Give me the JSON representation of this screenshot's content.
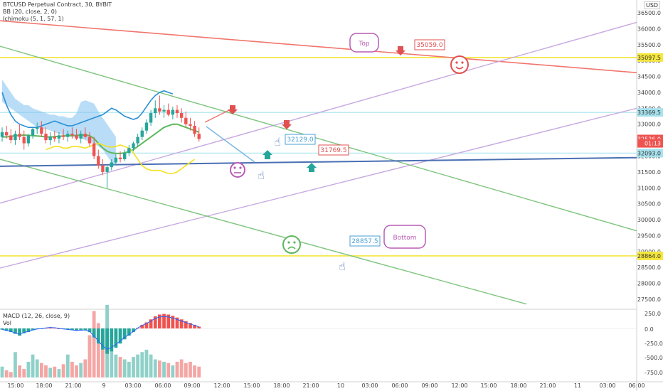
{
  "header": {
    "symbol": "BTCUSD Perpetual Contract, 30, BYBIT",
    "bb": "BB (20, close, 2, 0)",
    "ichimoku": "Ichimoku (5, 1, 57, 1)",
    "macd": "MACD (12, 26, close, 9)",
    "vol": "Vol"
  },
  "axis": {
    "currency": "USD",
    "price_ticks": [
      "36500.0",
      "36000.0",
      "35500.0",
      "35000.0",
      "34500.0",
      "34000.0",
      "33500.0",
      "33000.0",
      "32500.0",
      "32000.0",
      "31500.0",
      "31000.0",
      "30500.0",
      "30000.0",
      "29500.0",
      "29000.0",
      "28500.0",
      "28000.0",
      "27500.0"
    ],
    "macd_ticks": [
      "250.0",
      "0.0",
      "-250.0",
      "-500.0",
      "-750.0"
    ],
    "time_ticks": [
      "15:00",
      "18:00",
      "21:00",
      "9",
      "03:00",
      "06:00",
      "09:00",
      "12:00",
      "15:00",
      "18:00",
      "21:00",
      "10",
      "03:00",
      "06:00",
      "09:00",
      "12:00",
      "15:00",
      "18:00",
      "21:00",
      "11",
      "03:00",
      "06:00"
    ]
  },
  "price_tags": [
    {
      "text": "35097.5",
      "kind": "yellow"
    },
    {
      "text": "33369.5",
      "kind": "cyan"
    },
    {
      "text": "32536.0",
      "kind": "red"
    },
    {
      "text": "01:13",
      "kind": "red"
    },
    {
      "text": "32093.0",
      "kind": "cyan"
    },
    {
      "text": "28864.0",
      "kind": "yellow"
    }
  ],
  "annotations": {
    "top": "Top",
    "bottom": "Bottom",
    "label_35059": "35059.0",
    "label_32129": "32129.0",
    "label_31769": "31769.5",
    "label_28857": "28857.5"
  },
  "colors": {
    "up": "#26a69a",
    "down": "#ef5350",
    "yellow_line": "#f5e63b",
    "cyan_line": "#a7e3ef",
    "green_channel": "#7dc47d",
    "purple_channel": "#c8a8e0",
    "red_trend": "#f0766d",
    "blue_trend": "#4a6fb3",
    "cloud": "#7fc1f0"
  },
  "chart_data": {
    "type": "candlestick",
    "title": "BTCUSD Perpetual Contract, 30, BYBIT",
    "ylim": [
      27200,
      36700
    ],
    "horizontal_levels": [
      35097.5,
      33369.5,
      32093.0,
      28864.0
    ],
    "last_price": 32536.0,
    "candles": [
      {
        "o": 32600,
        "h": 32900,
        "l": 32450,
        "c": 32750
      },
      {
        "o": 32750,
        "h": 32950,
        "l": 32550,
        "c": 32650
      },
      {
        "o": 32650,
        "h": 32850,
        "l": 32400,
        "c": 32500
      },
      {
        "o": 32500,
        "h": 32800,
        "l": 32350,
        "c": 32700
      },
      {
        "o": 32700,
        "h": 33000,
        "l": 32500,
        "c": 32600
      },
      {
        "o": 32600,
        "h": 32800,
        "l": 32200,
        "c": 32400
      },
      {
        "o": 32400,
        "h": 32700,
        "l": 32300,
        "c": 32650
      },
      {
        "o": 32650,
        "h": 32900,
        "l": 32550,
        "c": 32850
      },
      {
        "o": 32850,
        "h": 33050,
        "l": 32700,
        "c": 32900
      },
      {
        "o": 32900,
        "h": 33100,
        "l": 32600,
        "c": 32700
      },
      {
        "o": 32700,
        "h": 32900,
        "l": 32400,
        "c": 32500
      },
      {
        "o": 32500,
        "h": 32750,
        "l": 32350,
        "c": 32600
      },
      {
        "o": 32600,
        "h": 32800,
        "l": 32450,
        "c": 32550
      },
      {
        "o": 32550,
        "h": 32750,
        "l": 32400,
        "c": 32650
      },
      {
        "o": 32650,
        "h": 32850,
        "l": 32500,
        "c": 32600
      },
      {
        "o": 32600,
        "h": 32800,
        "l": 32450,
        "c": 32700
      },
      {
        "o": 32700,
        "h": 32900,
        "l": 32550,
        "c": 32650
      },
      {
        "o": 32650,
        "h": 32850,
        "l": 32500,
        "c": 32550
      },
      {
        "o": 32550,
        "h": 32800,
        "l": 32400,
        "c": 32700
      },
      {
        "o": 32700,
        "h": 32900,
        "l": 32550,
        "c": 32600
      },
      {
        "o": 32600,
        "h": 32750,
        "l": 32300,
        "c": 32400
      },
      {
        "o": 32400,
        "h": 32600,
        "l": 31900,
        "c": 32000
      },
      {
        "o": 32000,
        "h": 32200,
        "l": 31600,
        "c": 31700
      },
      {
        "o": 31700,
        "h": 31900,
        "l": 31400,
        "c": 31500
      },
      {
        "o": 31500,
        "h": 31700,
        "l": 31000,
        "c": 31650
      },
      {
        "o": 31650,
        "h": 31900,
        "l": 31550,
        "c": 31800
      },
      {
        "o": 31800,
        "h": 32050,
        "l": 31700,
        "c": 31950
      },
      {
        "o": 31950,
        "h": 32150,
        "l": 31800,
        "c": 31900
      },
      {
        "o": 31900,
        "h": 32200,
        "l": 31850,
        "c": 32100
      },
      {
        "o": 32100,
        "h": 32350,
        "l": 32000,
        "c": 32250
      },
      {
        "o": 32250,
        "h": 32450,
        "l": 32150,
        "c": 32400
      },
      {
        "o": 32400,
        "h": 32700,
        "l": 32300,
        "c": 32600
      },
      {
        "o": 32600,
        "h": 32900,
        "l": 32500,
        "c": 32800
      },
      {
        "o": 32800,
        "h": 33150,
        "l": 32700,
        "c": 33050
      },
      {
        "o": 33050,
        "h": 33450,
        "l": 32950,
        "c": 33350
      },
      {
        "o": 33350,
        "h": 33750,
        "l": 33200,
        "c": 33500
      },
      {
        "o": 33500,
        "h": 33900,
        "l": 33300,
        "c": 33400
      },
      {
        "o": 33400,
        "h": 33600,
        "l": 33200,
        "c": 33450
      },
      {
        "o": 33450,
        "h": 33650,
        "l": 33250,
        "c": 33300
      },
      {
        "o": 33300,
        "h": 33550,
        "l": 33150,
        "c": 33450
      },
      {
        "o": 33450,
        "h": 33600,
        "l": 33200,
        "c": 33350
      },
      {
        "o": 33350,
        "h": 33500,
        "l": 33050,
        "c": 33200
      },
      {
        "o": 33200,
        "h": 33400,
        "l": 32900,
        "c": 33000
      },
      {
        "o": 33000,
        "h": 33200,
        "l": 32800,
        "c": 32950
      },
      {
        "o": 32950,
        "h": 33100,
        "l": 32600,
        "c": 32700
      },
      {
        "o": 32700,
        "h": 32900,
        "l": 32450,
        "c": 32536
      }
    ],
    "macd": [
      -20,
      -40,
      -60,
      -90,
      -120,
      -80,
      -60,
      -30,
      -10,
      -5,
      10,
      20,
      15,
      0,
      -10,
      -20,
      -30,
      -40,
      -35,
      -30,
      -60,
      -150,
      -250,
      -350,
      -420,
      -380,
      -320,
      -250,
      -180,
      -120,
      -60,
      10,
      60,
      100,
      150,
      200,
      230,
      240,
      230,
      210,
      180,
      150,
      120,
      90,
      60,
      30
    ],
    "volume": [
      180,
      120,
      90,
      420,
      200,
      140,
      260,
      380,
      300,
      240,
      200,
      160,
      180,
      140,
      220,
      380,
      260,
      200,
      240,
      300,
      700,
      1100,
      900,
      650,
      1200,
      500,
      380,
      340,
      300,
      260,
      340,
      380,
      420,
      460,
      380,
      300,
      280,
      260,
      240,
      200,
      260,
      300,
      240,
      260,
      200,
      180
    ]
  }
}
